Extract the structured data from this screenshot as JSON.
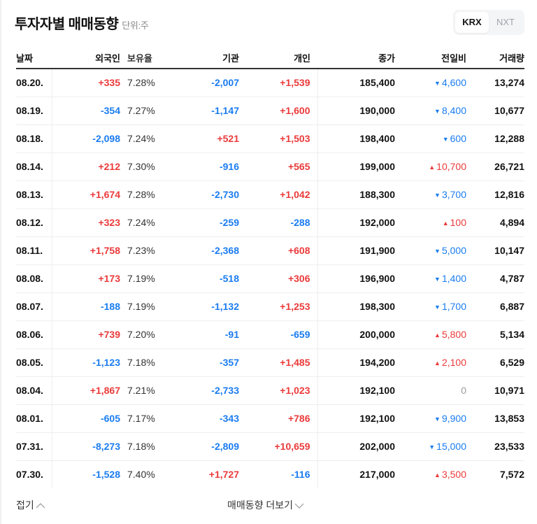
{
  "header": {
    "title": "투자자별 매매동향",
    "unit": "단위:주",
    "market_tabs": [
      {
        "label": "KRX",
        "active": true
      },
      {
        "label": "NXT",
        "active": false
      }
    ]
  },
  "table": {
    "columns": {
      "date": "날짜",
      "foreign": "외국인",
      "ownership": "보유율",
      "institution": "기관",
      "individual": "개인",
      "close": "종가",
      "change": "전일비",
      "volume": "거래량"
    },
    "rows": [
      {
        "date": "08.20.",
        "foreign": "+335",
        "ownership": "7.28%",
        "institution": "-2,007",
        "individual": "+1,539",
        "close": "185,400",
        "change": "4,600",
        "dir": "down",
        "volume": "13,274"
      },
      {
        "date": "08.19.",
        "foreign": "-354",
        "ownership": "7.27%",
        "institution": "-1,147",
        "individual": "+1,600",
        "close": "190,000",
        "change": "8,400",
        "dir": "down",
        "volume": "10,677"
      },
      {
        "date": "08.18.",
        "foreign": "-2,098",
        "ownership": "7.24%",
        "institution": "+521",
        "individual": "+1,503",
        "close": "198,400",
        "change": "600",
        "dir": "down",
        "volume": "12,288"
      },
      {
        "date": "08.14.",
        "foreign": "+212",
        "ownership": "7.30%",
        "institution": "-916",
        "individual": "+565",
        "close": "199,000",
        "change": "10,700",
        "dir": "up",
        "volume": "26,721"
      },
      {
        "date": "08.13.",
        "foreign": "+1,674",
        "ownership": "7.28%",
        "institution": "-2,730",
        "individual": "+1,042",
        "close": "188,300",
        "change": "3,700",
        "dir": "down",
        "volume": "12,816"
      },
      {
        "date": "08.12.",
        "foreign": "+323",
        "ownership": "7.24%",
        "institution": "-259",
        "individual": "-288",
        "close": "192,000",
        "change": "100",
        "dir": "up",
        "volume": "4,894"
      },
      {
        "date": "08.11.",
        "foreign": "+1,758",
        "ownership": "7.23%",
        "institution": "-2,368",
        "individual": "+608",
        "close": "191,900",
        "change": "5,000",
        "dir": "down",
        "volume": "10,147"
      },
      {
        "date": "08.08.",
        "foreign": "+173",
        "ownership": "7.19%",
        "institution": "-518",
        "individual": "+306",
        "close": "196,900",
        "change": "1,400",
        "dir": "down",
        "volume": "4,787"
      },
      {
        "date": "08.07.",
        "foreign": "-188",
        "ownership": "7.19%",
        "institution": "-1,132",
        "individual": "+1,253",
        "close": "198,300",
        "change": "1,700",
        "dir": "down",
        "volume": "6,887"
      },
      {
        "date": "08.06.",
        "foreign": "+739",
        "ownership": "7.20%",
        "institution": "-91",
        "individual": "-659",
        "close": "200,000",
        "change": "5,800",
        "dir": "up",
        "volume": "5,134"
      },
      {
        "date": "08.05.",
        "foreign": "-1,123",
        "ownership": "7.18%",
        "institution": "-357",
        "individual": "+1,485",
        "close": "194,200",
        "change": "2,100",
        "dir": "up",
        "volume": "6,529"
      },
      {
        "date": "08.04.",
        "foreign": "+1,867",
        "ownership": "7.21%",
        "institution": "-2,733",
        "individual": "+1,023",
        "close": "192,100",
        "change": "0",
        "dir": "flat",
        "volume": "10,971"
      },
      {
        "date": "08.01.",
        "foreign": "-605",
        "ownership": "7.17%",
        "institution": "-343",
        "individual": "+786",
        "close": "192,100",
        "change": "9,900",
        "dir": "down",
        "volume": "13,853"
      },
      {
        "date": "07.31.",
        "foreign": "-8,273",
        "ownership": "7.18%",
        "institution": "-2,809",
        "individual": "+10,659",
        "close": "202,000",
        "change": "15,000",
        "dir": "down",
        "volume": "23,533"
      },
      {
        "date": "07.30.",
        "foreign": "-1,528",
        "ownership": "7.40%",
        "institution": "+1,727",
        "individual": "-116",
        "close": "217,000",
        "change": "3,500",
        "dir": "up",
        "volume": "7,572"
      }
    ]
  },
  "footer": {
    "fold_label": "접기",
    "more_label": "매매동향 더보기"
  },
  "colors": {
    "up": "#eb3a3a",
    "down": "#1a7cf0",
    "flat": "#9a9a9a",
    "header_rule": "#333333"
  },
  "icons": {
    "up_arrow": "▲",
    "down_arrow": "▼",
    "chevron_up": "chevron-up-icon",
    "chevron_down": "chevron-down-icon"
  }
}
